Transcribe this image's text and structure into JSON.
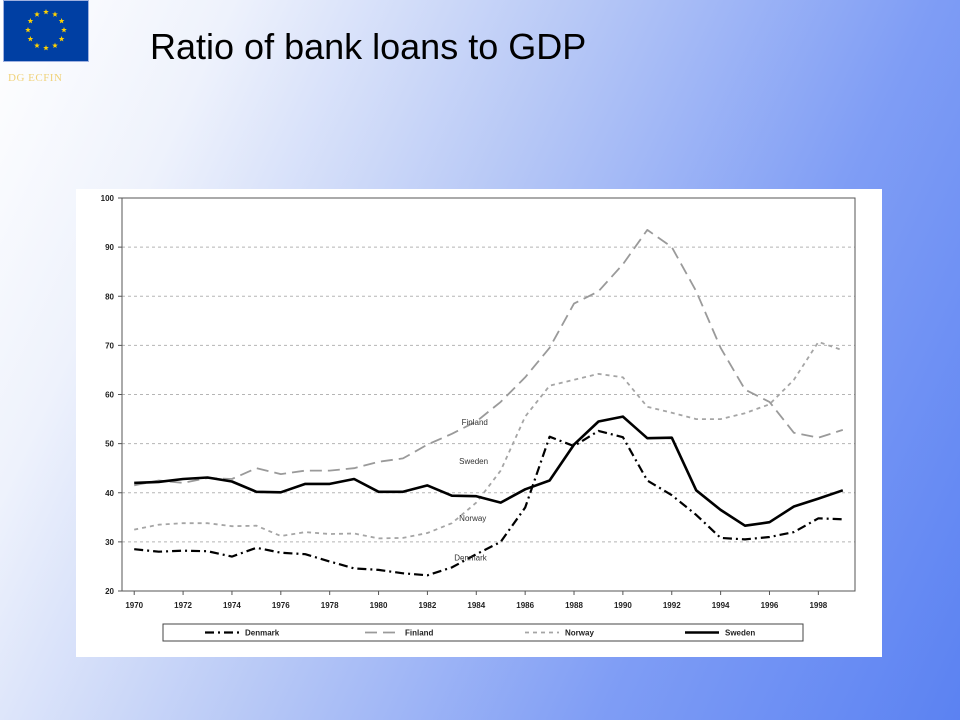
{
  "slide": {
    "title": "Ratio of bank loans to GDP",
    "logo_text": "DG ECFIN",
    "flag": "eu-flag-icon"
  },
  "chart_data": {
    "type": "line",
    "title": "",
    "xlabel": "",
    "ylabel": "",
    "ylim": [
      20,
      100
    ],
    "xlim": [
      1970,
      1999
    ],
    "grid": true,
    "legend": "bottom",
    "x_ticks": [
      "1970",
      "1972",
      "1974",
      "1976",
      "1978",
      "1980",
      "1982",
      "1984",
      "1986",
      "1988",
      "1990",
      "1992",
      "1994",
      "1996",
      "1998"
    ],
    "y_ticks": [
      "100",
      "90",
      "80",
      "70",
      "60",
      "50",
      "40",
      "30",
      "20"
    ],
    "x": [
      1970,
      1971,
      1972,
      1973,
      1974,
      1975,
      1976,
      1977,
      1978,
      1979,
      1980,
      1981,
      1982,
      1983,
      1984,
      1985,
      1986,
      1987,
      1988,
      1989,
      1990,
      1991,
      1992,
      1993,
      1994,
      1995,
      1996,
      1997,
      1998,
      1999
    ],
    "series": [
      {
        "name": "Denmark",
        "color": "#000000",
        "dash": "9,4,2,4",
        "width": 2.2,
        "values": [
          28.5,
          28,
          28.2,
          28.1,
          27,
          28.8,
          27.8,
          27.5,
          26,
          24.6,
          24.3,
          23.6,
          23.2,
          24.8,
          27.5,
          30,
          37,
          51.4,
          49.5,
          52.6,
          51.3,
          42.5,
          39.5,
          35.5,
          30.8,
          30.5,
          31,
          32,
          34.8,
          34.6
        ]
      },
      {
        "name": "Finland",
        "color": "#9a9a9a",
        "dash": "12,6",
        "width": 1.8,
        "values": [
          41.5,
          42.5,
          42,
          43,
          42.8,
          45,
          43.8,
          44.5,
          44.5,
          45,
          46.3,
          47,
          49.8,
          52,
          54.5,
          58.5,
          63.5,
          69.5,
          78.5,
          81,
          86.5,
          93.5,
          90,
          81,
          69.5,
          61,
          58.5,
          52.2,
          51.2,
          52.8
        ]
      },
      {
        "name": "Norway",
        "color": "#a5a5a5",
        "dash": "4,4",
        "width": 1.8,
        "values": [
          32.5,
          33.5,
          33.8,
          33.8,
          33.2,
          33.3,
          31.2,
          32,
          31.6,
          31.7,
          30.7,
          30.8,
          31.8,
          33.8,
          38,
          44.5,
          55.5,
          61.8,
          63,
          64.2,
          63.5,
          57.5,
          56.3,
          55,
          55,
          56.2,
          58,
          63,
          70.7,
          69
        ]
      },
      {
        "name": "Sweden",
        "color": "#000000",
        "dash": "",
        "width": 2.6,
        "values": [
          42,
          42.2,
          42.8,
          43.1,
          42.3,
          40.2,
          40.1,
          41.8,
          41.8,
          42.8,
          40.2,
          40.2,
          41.5,
          39.4,
          39.3,
          38,
          40.7,
          42.5,
          49.8,
          54.5,
          55.5,
          51.1,
          51.2,
          40.5,
          36.5,
          33.3,
          34,
          37.2,
          38.8,
          40.5
        ]
      }
    ],
    "annotations": [
      {
        "text": "Finland",
        "x": 1983.4,
        "y": 53.8
      },
      {
        "text": "Sweden",
        "x": 1983.3,
        "y": 45.9
      },
      {
        "text": "Norway",
        "x": 1983.3,
        "y": 34.2
      },
      {
        "text": "Denmark",
        "x": 1983.1,
        "y": 26.2
      }
    ]
  }
}
